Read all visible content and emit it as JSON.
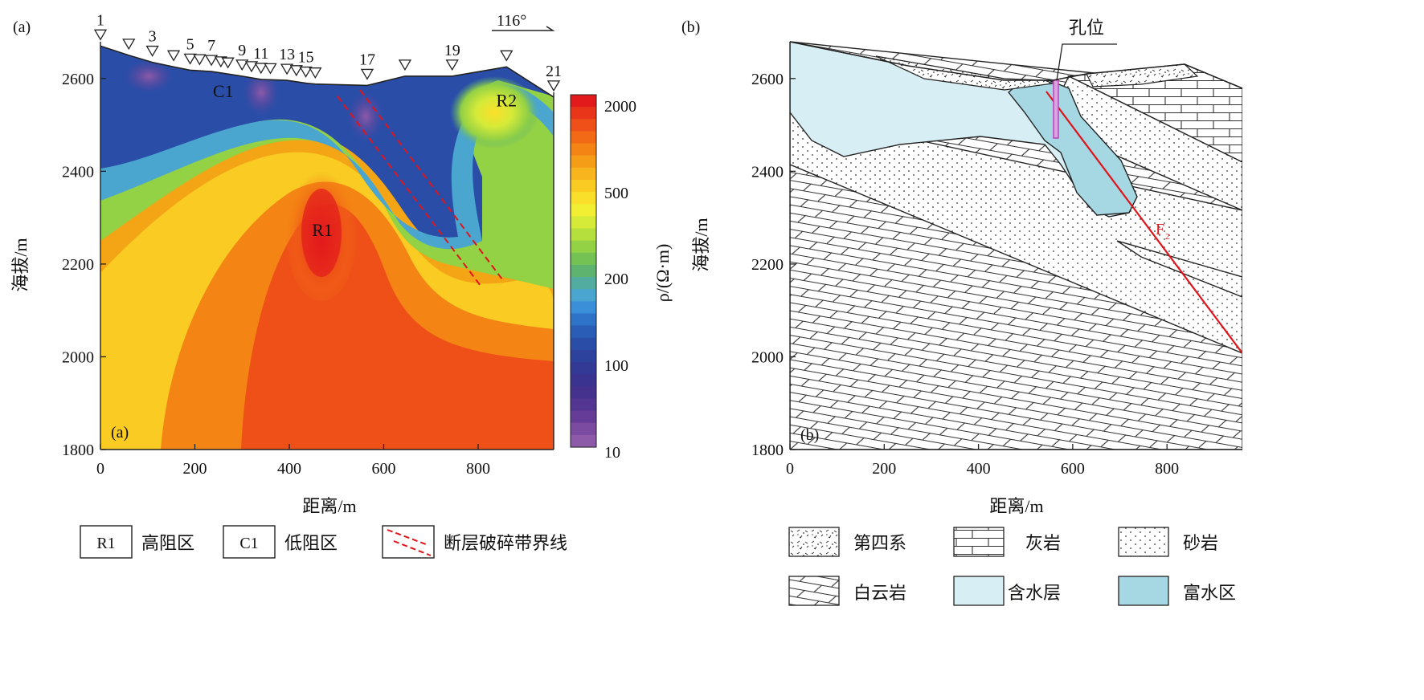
{
  "panel_a": {
    "label": "(a)",
    "inner_label": "(a)",
    "direction_label": "116°",
    "xlabel": "距离/m",
    "ylabel": "海拔/m",
    "xticks": [
      "0",
      "200",
      "400",
      "600",
      "800"
    ],
    "yticks": [
      "1800",
      "2000",
      "2200",
      "2400",
      "2600"
    ],
    "stations": [
      {
        "id": "1",
        "x": 0
      },
      {
        "id": "",
        "x": 60
      },
      {
        "id": "3",
        "x": 110
      },
      {
        "id": "",
        "x": 155
      },
      {
        "id": "5",
        "x": 190
      },
      {
        "id": "",
        "x": 210
      },
      {
        "id": "7",
        "x": 235
      },
      {
        "id": "",
        "x": 255
      },
      {
        "id": "",
        "x": 270
      },
      {
        "id": "9",
        "x": 300
      },
      {
        "id": "",
        "x": 320
      },
      {
        "id": "11",
        "x": 340
      },
      {
        "id": "",
        "x": 360
      },
      {
        "id": "13",
        "x": 395
      },
      {
        "id": "",
        "x": 415
      },
      {
        "id": "15",
        "x": 435
      },
      {
        "id": "",
        "x": 455
      },
      {
        "id": "17",
        "x": 565
      },
      {
        "id": "",
        "x": 645
      },
      {
        "id": "19",
        "x": 745
      },
      {
        "id": "",
        "x": 860
      },
      {
        "id": "21",
        "x": 960
      }
    ],
    "zone_labels": [
      {
        "text": "C1",
        "x": 260,
        "y": 2560
      },
      {
        "text": "R1",
        "x": 470,
        "y": 2260
      },
      {
        "text": "R2",
        "x": 860,
        "y": 2540
      }
    ],
    "colorbar": {
      "label": "ρ/(Ω·m)",
      "ticks": [
        "2000",
        "500",
        "200",
        "100",
        "10"
      ],
      "colors": [
        "#e31a1c",
        "#e9351a",
        "#ee5018",
        "#f26a16",
        "#f48414",
        "#f69d18",
        "#f8b51d",
        "#f9cb23",
        "#fadf2a",
        "#f2ee32",
        "#d6ea38",
        "#b5df3c",
        "#93d145",
        "#74c154",
        "#5eb46f",
        "#53aca0",
        "#4ba6cf",
        "#3b8fd9",
        "#2f73c8",
        "#2a5db6",
        "#2a4ea8",
        "#2d429d",
        "#333a95",
        "#3a338f",
        "#45328f",
        "#533592",
        "#653d98",
        "#7a4ba0",
        "#8c5aa8"
      ]
    },
    "legend": [
      {
        "swatch": "R1",
        "label": "高阻区"
      },
      {
        "swatch": "C1",
        "label": "低阻区"
      },
      {
        "swatch": "",
        "label": "断层破碎带界线"
      }
    ]
  },
  "panel_b": {
    "label": "(b)",
    "inner_label": "(b)",
    "borehole_label": "孔位",
    "fault_label": "F",
    "xlabel": "距离/m",
    "ylabel": "海拔/m",
    "xticks": [
      "0",
      "200",
      "400",
      "600",
      "800"
    ],
    "yticks": [
      "1800",
      "2000",
      "2200",
      "2400",
      "2600"
    ],
    "legend": [
      {
        "pattern": "quaternary",
        "label": "第四系"
      },
      {
        "pattern": "limestone",
        "label": "灰岩"
      },
      {
        "pattern": "sandstone",
        "label": "砂岩"
      },
      {
        "pattern": "dolomite",
        "label": "白云岩"
      },
      {
        "pattern": "aquifer",
        "label": "含水层"
      },
      {
        "pattern": "richwater",
        "label": "富水区"
      }
    ],
    "colors": {
      "aquifer": "#d7eef4",
      "richwater": "#a6d8e3",
      "fault": "#e0141b",
      "borehole": "#c040c0"
    }
  }
}
